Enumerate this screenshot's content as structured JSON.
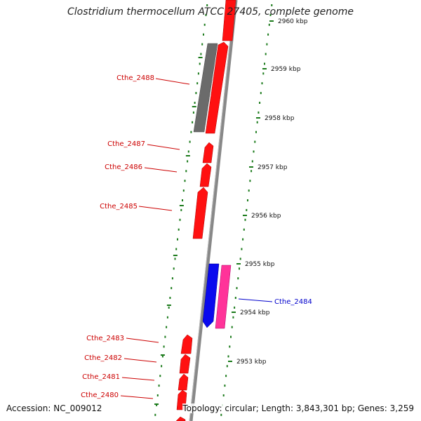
{
  "title": "Clostridium thermocellum ATCC 27405, complete genome",
  "accession": "Accession: NC_009012",
  "topology": "Topology: circular; Length: 3,843,301 bp; Genes: 3,259",
  "colors": {
    "backbone": "#888888",
    "forward_gene": "#ff0000",
    "reverse_gene": "#0000ff",
    "pink_gene": "#ff3399",
    "gray_gene": "#707070",
    "tick": "#1a7a1a",
    "label_red": "#cc0000",
    "label_blue": "#0000cc"
  },
  "scale_ticks": [
    {
      "kbp": 2960,
      "label": "2960 kbp"
    },
    {
      "kbp": 2959,
      "label": "2959 kbp"
    },
    {
      "kbp": 2958,
      "label": "2958 kbp"
    },
    {
      "kbp": 2957,
      "label": "2957 kbp"
    },
    {
      "kbp": 2956,
      "label": "2956 kbp"
    },
    {
      "kbp": 2955,
      "label": "2955 kbp"
    },
    {
      "kbp": 2954,
      "label": "2954 kbp"
    },
    {
      "kbp": 2953,
      "label": "2953 kbp"
    }
  ],
  "gene_labels": [
    {
      "name": "Cthe_2488",
      "color": "red"
    },
    {
      "name": "Cthe_2487",
      "color": "red"
    },
    {
      "name": "Cthe_2486",
      "color": "red"
    },
    {
      "name": "Cthe_2485",
      "color": "red"
    },
    {
      "name": "Cthe_2484",
      "color": "blue"
    },
    {
      "name": "Cthe_2483",
      "color": "red"
    },
    {
      "name": "Cthe_2482",
      "color": "red"
    },
    {
      "name": "Cthe_2481",
      "color": "red"
    },
    {
      "name": "Cthe_2480",
      "color": "red"
    }
  ]
}
